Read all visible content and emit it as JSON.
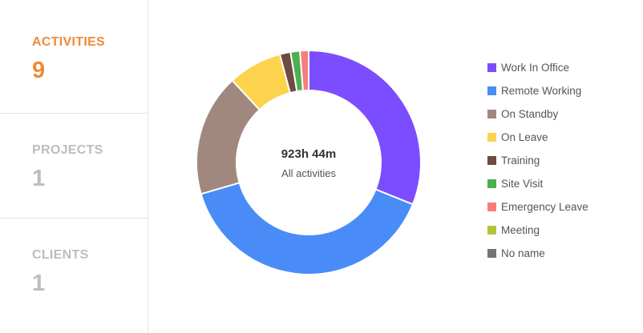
{
  "sidebar": {
    "stats": [
      {
        "label": "ACTIVITIES",
        "value": "9",
        "active": true
      },
      {
        "label": "PROJECTS",
        "value": "1",
        "active": false
      },
      {
        "label": "CLIENTS",
        "value": "1",
        "active": false
      }
    ]
  },
  "colors": {
    "accent": "#f08a35",
    "inactive_text": "#bdbdbd",
    "divider": "#e4e4e4"
  },
  "chart_data": {
    "type": "pie",
    "center_value": "923h 44m",
    "center_label": "All activities",
    "legend_placement": "right",
    "slices": [
      {
        "name": "Work In Office",
        "value": 30,
        "color": "#7c4dff"
      },
      {
        "name": "Remote Working",
        "value": 38,
        "color": "#4a8cf7"
      },
      {
        "name": "On Standby",
        "value": 17,
        "color": "#a1887f"
      },
      {
        "name": "On Leave",
        "value": 7.5,
        "color": "#fdd34d"
      },
      {
        "name": "Training",
        "value": 1.5,
        "color": "#6d4c41"
      },
      {
        "name": "Site Visit",
        "value": 1.3,
        "color": "#4caf50"
      },
      {
        "name": "Emergency Leave",
        "value": 1.2,
        "color": "#f77c7c"
      },
      {
        "name": "Meeting",
        "value": 0,
        "color": "#b5c437"
      },
      {
        "name": "No name",
        "value": 0,
        "color": "#757575"
      }
    ]
  }
}
